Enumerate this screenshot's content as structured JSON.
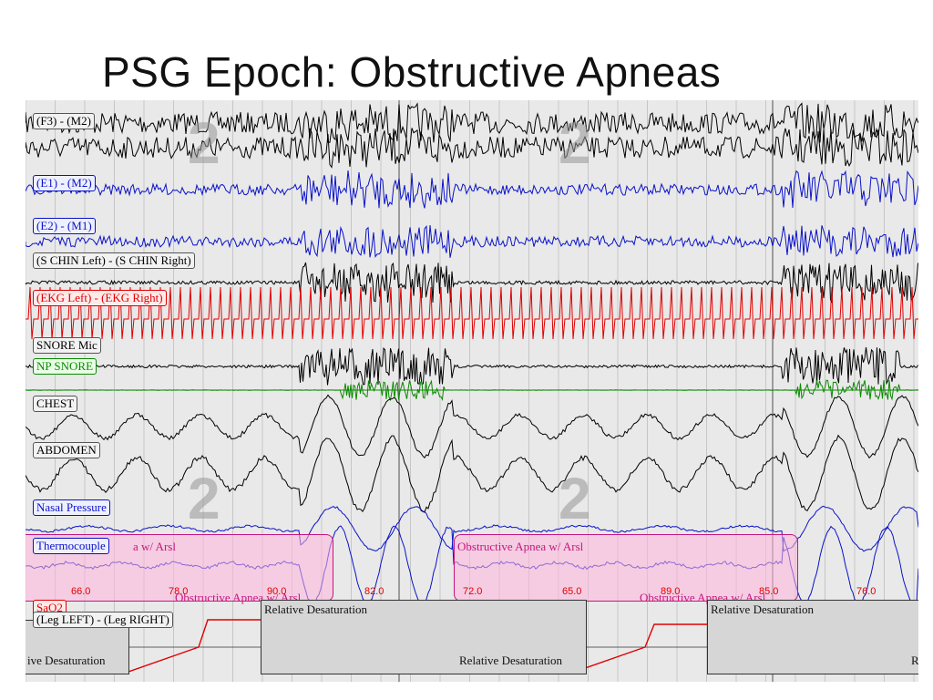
{
  "slide": {
    "title": "PSG Epoch: Obstructive Apneas"
  },
  "channels": [
    {
      "label": "(F3) - (M2)",
      "color": "black"
    },
    {
      "label": "(E1) - (M2)",
      "color": "blue"
    },
    {
      "label": "(E2) - (M1)",
      "color": "blue"
    },
    {
      "label": "(S CHIN Left) - (S CHIN Right)",
      "color": "black"
    },
    {
      "label": "(EKG Left) - (EKG Right)",
      "color": "red"
    },
    {
      "label": "SNORE Mic",
      "color": "black"
    },
    {
      "label": "NP SNORE",
      "color": "green"
    },
    {
      "label": "CHEST",
      "color": "black"
    },
    {
      "label": "ABDOMEN",
      "color": "black"
    },
    {
      "label": "Nasal Pressure",
      "color": "blue"
    },
    {
      "label": "Thermocouple",
      "color": "blue"
    },
    {
      "label": "SaO2",
      "color": "red"
    },
    {
      "label": "(Leg LEFT) - (Leg RIGHT)",
      "color": "black"
    }
  ],
  "sleep_stage": "2",
  "events": [
    {
      "label": "a w/ Arsl"
    },
    {
      "label": "Obstructive Apnea w/ Arsl"
    },
    {
      "label": "Obstructive Apnea w/ Arsl"
    },
    {
      "label": "Obstructive Apnea w/ Arsl"
    }
  ],
  "sao2_values": [
    "66.0",
    "78.0",
    "90.0",
    "82.0",
    "72.0",
    "65.0",
    "89.0",
    "85.0",
    "76.0"
  ],
  "desaturation_labels": [
    "Relative Desaturation",
    "Relative Desaturation",
    "ive Desaturation",
    "Relative Desaturation",
    "R"
  ],
  "colors": {
    "eeg": "#000000",
    "eog": "#0a12c8",
    "ekg": "#e00000",
    "np_snore": "#0a8a00",
    "event": "#c5177f",
    "event_fill": "#ffb4dc"
  }
}
